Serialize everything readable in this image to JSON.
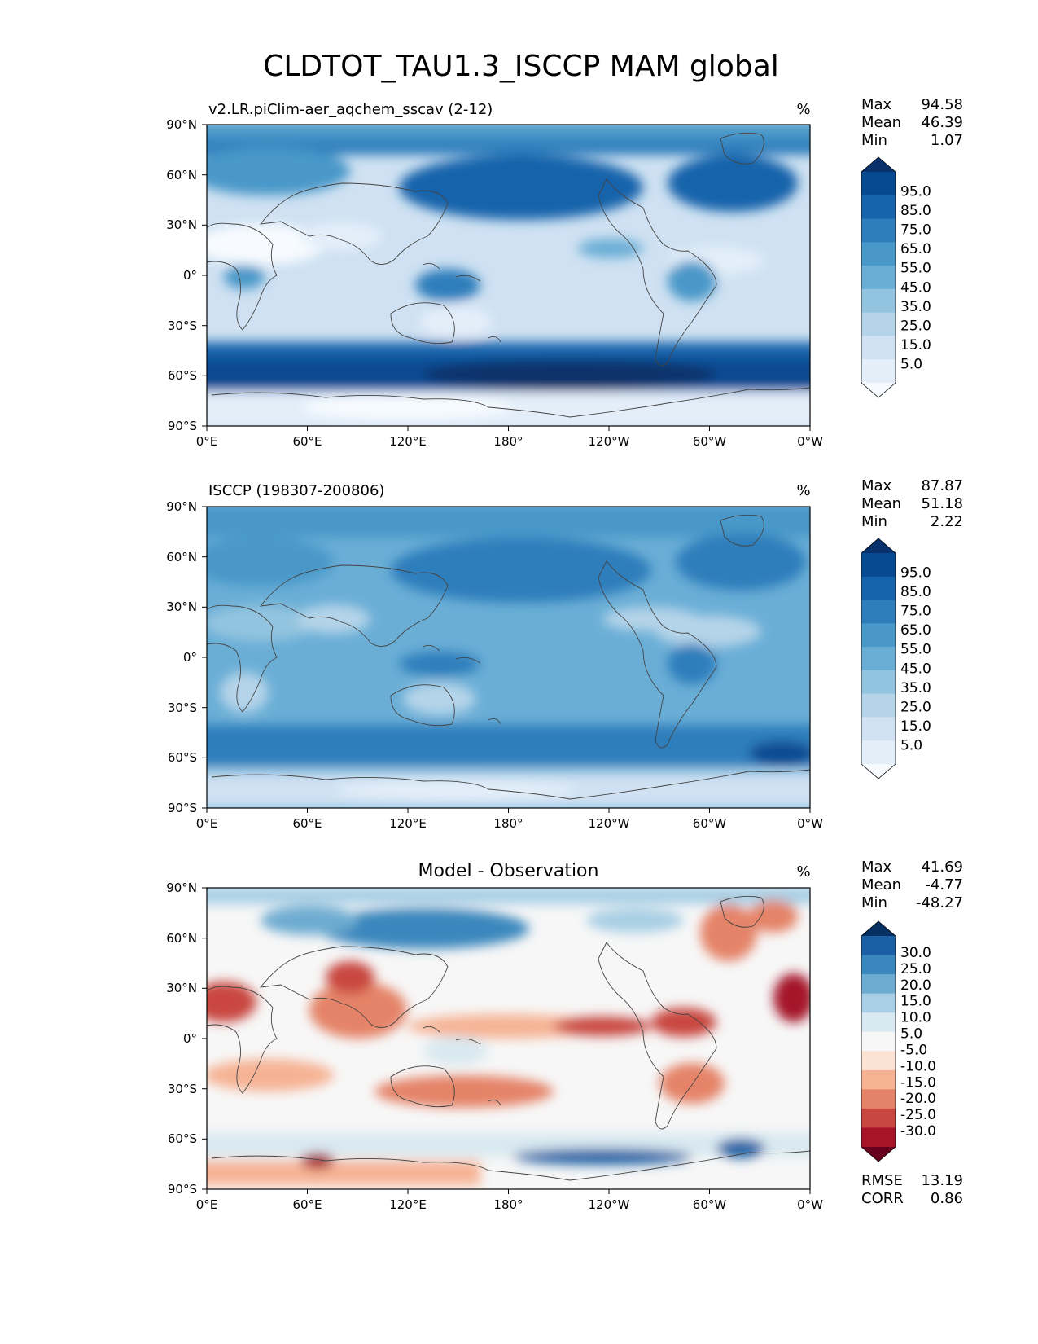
{
  "figure": {
    "title": "CLDTOT_TAU1.3_ISCCP MAM global"
  },
  "colors": {
    "blues": [
      "#f7fbff",
      "#e3eef9",
      "#cfe1f2",
      "#b5d4e9",
      "#93c4df",
      "#6aaed6",
      "#4a98c9",
      "#2e7ebc",
      "#1664ab",
      "#084a91",
      "#08306b"
    ],
    "rdbu": [
      "#67001f",
      "#a51429",
      "#c94741",
      "#e58368",
      "#f6b394",
      "#fbe3d4",
      "#f7f7f7",
      "#d9e9f1",
      "#a8cfe5",
      "#6eacd1",
      "#3a87bd",
      "#1b60a4",
      "#053061"
    ],
    "land": "#444444"
  },
  "axes": {
    "xticks": [
      "0°E",
      "60°E",
      "120°E",
      "180°",
      "120°W",
      "60°W",
      "0°W"
    ],
    "yticks": [
      "90°N",
      "60°N",
      "30°N",
      "0°",
      "30°S",
      "60°S",
      "90°S"
    ]
  },
  "panels": [
    {
      "id": "model",
      "label": "v2.LR.piClim-aer_aqchem_sscav (2-12)",
      "units": "%",
      "stats": [
        [
          "Max",
          "94.58"
        ],
        [
          "Mean",
          "46.39"
        ],
        [
          "Min",
          "1.07"
        ]
      ],
      "colorbar": {
        "palette": "blues",
        "ticks": [
          "95.0",
          "85.0",
          "75.0",
          "65.0",
          "55.0",
          "45.0",
          "35.0",
          "25.0",
          "15.0",
          "5.0"
        ]
      }
    },
    {
      "id": "obs",
      "label": "ISCCP (198307-200806)",
      "units": "%",
      "stats": [
        [
          "Max",
          "87.87"
        ],
        [
          "Mean",
          "51.18"
        ],
        [
          "Min",
          "2.22"
        ]
      ],
      "colorbar": {
        "palette": "blues",
        "ticks": [
          "95.0",
          "85.0",
          "75.0",
          "65.0",
          "55.0",
          "45.0",
          "35.0",
          "25.0",
          "15.0",
          "5.0"
        ]
      }
    },
    {
      "id": "diff",
      "label": "Model - Observation",
      "units": "%",
      "stats": [
        [
          "Max",
          "41.69"
        ],
        [
          "Mean",
          "-4.77"
        ],
        [
          "Min",
          "-48.27"
        ]
      ],
      "colorbar": {
        "palette": "rdbu",
        "ticks": [
          "30.0",
          "25.0",
          "20.0",
          "15.0",
          "10.0",
          "5.0",
          "-5.0",
          "-10.0",
          "-15.0",
          "-20.0",
          "-25.0",
          "-30.0"
        ]
      },
      "metrics": [
        [
          "RMSE",
          "13.19"
        ],
        [
          "CORR",
          "0.86"
        ]
      ]
    }
  ]
}
